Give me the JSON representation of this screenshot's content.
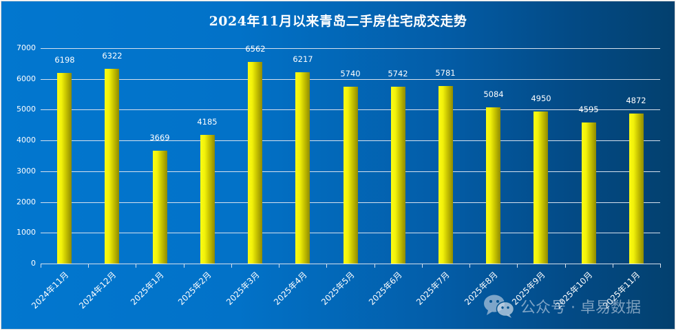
{
  "chart_data": {
    "type": "bar",
    "title": "2024年11月以来青岛二手房住宅成交走势",
    "xlabel": "",
    "ylabel": "",
    "ylim": [
      0,
      7000
    ],
    "yticks": [
      0,
      1000,
      2000,
      3000,
      4000,
      5000,
      6000,
      7000
    ],
    "grid": true,
    "legend": null,
    "categories": [
      "2024年11月",
      "2024年12月",
      "2025年1月",
      "2025年2月",
      "2025年3月",
      "2025年4月",
      "2025年5月",
      "2025年6月",
      "2025年7月",
      "2025年8月",
      "2025年9月",
      "2025年10月",
      "2025年11月"
    ],
    "values": [
      6198,
      6322,
      3669,
      4185,
      6562,
      6217,
      5740,
      5742,
      5781,
      5084,
      4950,
      4595,
      4872
    ],
    "data_labels": true,
    "colors": {
      "bar_light": "#fbfb14",
      "bar_dark": "#8f8a00",
      "background_left": "#0277cf",
      "background_right": "#03406e",
      "gridline": "#d9e2ee",
      "text": "#ffffff"
    }
  },
  "watermark": {
    "icon": "wechat-icon",
    "text": "公众号 · 卓易数据"
  }
}
